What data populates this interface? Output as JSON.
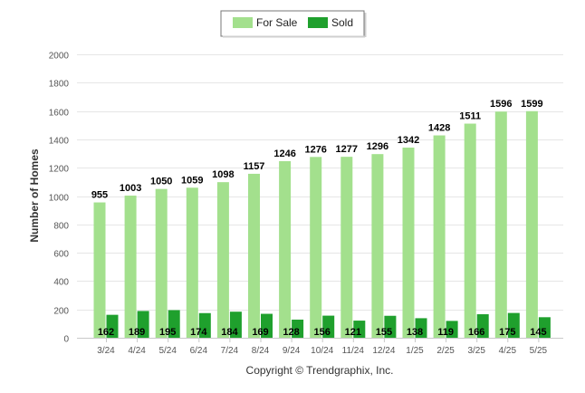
{
  "chart_data": {
    "type": "bar",
    "ylabel": "Number of Homes",
    "xlabel": "",
    "ylim": [
      0,
      2000
    ],
    "yticks": [
      0,
      200,
      400,
      600,
      800,
      1000,
      1200,
      1400,
      1600,
      1800,
      2000
    ],
    "grid": true,
    "legend_position": "top-center",
    "categories": [
      "3/24",
      "4/24",
      "5/24",
      "6/24",
      "7/24",
      "8/24",
      "9/24",
      "10/24",
      "11/24",
      "12/24",
      "1/25",
      "2/25",
      "3/25",
      "4/25",
      "5/25"
    ],
    "series": [
      {
        "name": "For Sale",
        "color": "#a3e08d",
        "values": [
          955,
          1003,
          1050,
          1059,
          1098,
          1157,
          1246,
          1276,
          1277,
          1296,
          1342,
          1428,
          1511,
          1596,
          1599
        ]
      },
      {
        "name": "Sold",
        "color": "#1fa02d",
        "values": [
          162,
          189,
          195,
          174,
          184,
          169,
          128,
          156,
          121,
          155,
          138,
          119,
          166,
          175,
          145
        ]
      }
    ]
  },
  "footer": {
    "copyright": "Copyright © Trendgraphix, Inc."
  }
}
